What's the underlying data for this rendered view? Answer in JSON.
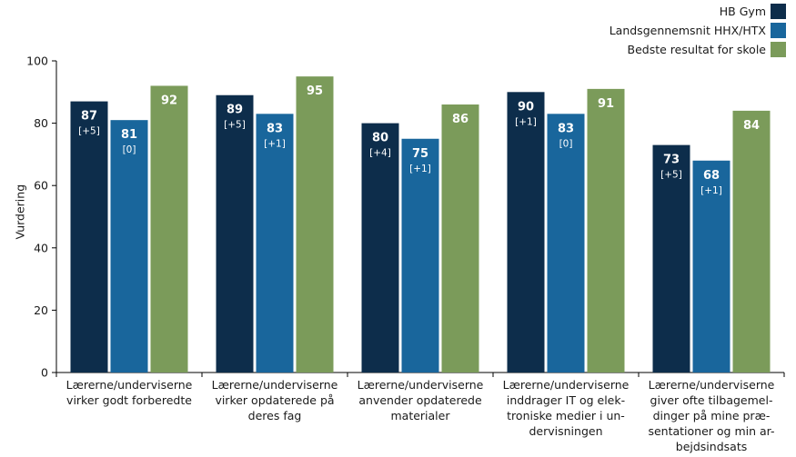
{
  "chart_data": {
    "type": "bar",
    "ylabel": "Vurdering",
    "ylim": [
      0,
      100
    ],
    "yticks": [
      0,
      20,
      40,
      60,
      80,
      100
    ],
    "grid": false,
    "legend_position": "top-right",
    "categories": [
      [
        "Lærerne/underviserne",
        "virker godt forberedte"
      ],
      [
        "Lærerne/underviserne",
        "virker opdaterede på",
        "deres fag"
      ],
      [
        "Lærerne/underviserne",
        "anvender opdaterede",
        "materialer"
      ],
      [
        "Lærerne/underviserne",
        "inddrager IT og elek-",
        "troniske medier i un-",
        "dervisningen"
      ],
      [
        "Lærerne/underviserne",
        "giver ofte tilbagemel-",
        "dinger på mine præ-",
        "sentationer og min ar-",
        "bejdsindsats"
      ]
    ],
    "series": [
      {
        "name": "HB Gym",
        "color": "#0d2d4b",
        "values": [
          87,
          89,
          80,
          90,
          73
        ],
        "changes": [
          "[+5]",
          "[+5]",
          "[+4]",
          "[+1]",
          "[+5]"
        ]
      },
      {
        "name": "Landsgennemsnit HHX/HTX",
        "color": "#19669c",
        "values": [
          81,
          83,
          75,
          83,
          68
        ],
        "changes": [
          "[0]",
          "[+1]",
          "[+1]",
          "[0]",
          "[+1]"
        ]
      },
      {
        "name": "Bedste resultat for skole",
        "color": "#7b9b5a",
        "values": [
          92,
          95,
          86,
          91,
          84
        ],
        "changes": [
          "",
          "",
          "",
          "",
          ""
        ]
      }
    ]
  }
}
